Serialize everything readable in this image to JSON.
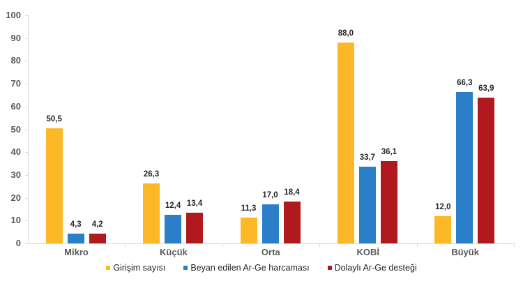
{
  "chart_data": {
    "type": "bar",
    "title": "",
    "xlabel": "",
    "ylabel": "",
    "ylim": [
      0,
      100
    ],
    "yticks": [
      0,
      10,
      20,
      30,
      40,
      50,
      60,
      70,
      80,
      90,
      100
    ],
    "categories": [
      "Mikro",
      "Küçük",
      "Orta",
      "KOBİ",
      "Büyük"
    ],
    "series": [
      {
        "name": "Girişim sayısı",
        "color": "#FDB827",
        "values": [
          50.5,
          26.3,
          11.3,
          88.0,
          12.0
        ],
        "labels": [
          "50,5",
          "26,3",
          "11,3",
          "88,0",
          "12,0"
        ]
      },
      {
        "name": "Beyan edilen Ar-Ge harcaması",
        "color": "#2A7FC8",
        "values": [
          4.3,
          12.4,
          17.0,
          33.7,
          66.3
        ],
        "labels": [
          "4,3",
          "12,4",
          "17,0",
          "33,7",
          "66,3"
        ]
      },
      {
        "name": "Dolaylı Ar-Ge desteği",
        "color": "#B01A1E",
        "values": [
          4.2,
          13.4,
          18.4,
          36.1,
          63.9
        ],
        "labels": [
          "4,2",
          "13,4",
          "18,4",
          "36,1",
          "63,9"
        ]
      }
    ],
    "grid": false,
    "legend_position": "bottom",
    "data_labels": true
  }
}
